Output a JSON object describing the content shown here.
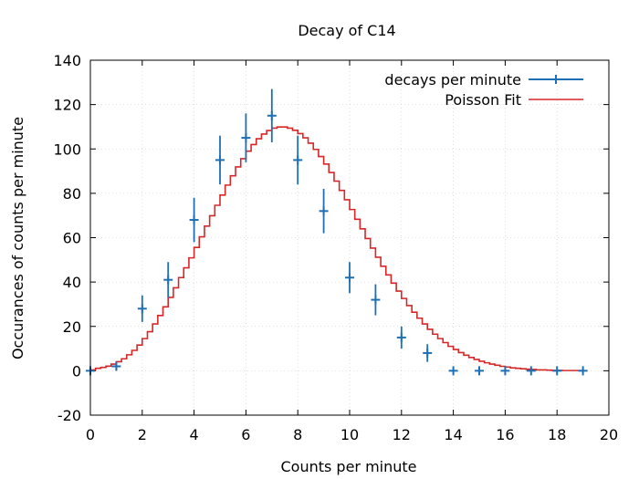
{
  "chart_data": {
    "type": "line",
    "title": "Decay of C14",
    "xlabel": "Counts per minute",
    "ylabel": "Occurances of counts per minute",
    "xlim": [
      0,
      20
    ],
    "ylim": [
      -20,
      140
    ],
    "xticks": [
      0,
      2,
      4,
      6,
      8,
      10,
      12,
      14,
      16,
      18,
      20
    ],
    "yticks": [
      -20,
      0,
      20,
      40,
      60,
      80,
      100,
      120,
      140
    ],
    "grid": true,
    "legend_position": "top-right",
    "series": [
      {
        "name": "decays per minute",
        "kind": "errorbars",
        "color": "#1f6fb4",
        "points": [
          {
            "x": 0,
            "y": 0,
            "err": 0
          },
          {
            "x": 1,
            "y": 2,
            "err": 2
          },
          {
            "x": 2,
            "y": 28,
            "err": 6
          },
          {
            "x": 3,
            "y": 41,
            "err": 8
          },
          {
            "x": 4,
            "y": 68,
            "err": 10
          },
          {
            "x": 5,
            "y": 95,
            "err": 11
          },
          {
            "x": 6,
            "y": 105,
            "err": 11
          },
          {
            "x": 7,
            "y": 115,
            "err": 12
          },
          {
            "x": 8,
            "y": 95,
            "err": 11
          },
          {
            "x": 9,
            "y": 72,
            "err": 10
          },
          {
            "x": 10,
            "y": 42,
            "err": 7
          },
          {
            "x": 11,
            "y": 32,
            "err": 7
          },
          {
            "x": 12,
            "y": 15,
            "err": 5
          },
          {
            "x": 13,
            "y": 8,
            "err": 4
          },
          {
            "x": 14,
            "y": 0,
            "err": 0
          },
          {
            "x": 15,
            "y": 0,
            "err": 0
          },
          {
            "x": 16,
            "y": 0,
            "err": 0
          },
          {
            "x": 17,
            "y": 0,
            "err": 0
          },
          {
            "x": 18,
            "y": 0,
            "err": 0
          },
          {
            "x": 19,
            "y": 0,
            "err": 0
          }
        ]
      },
      {
        "name": "Poisson Fit",
        "kind": "steps",
        "color": "#d62728",
        "x_start": 0,
        "x_end": 19,
        "x_step": 0.2,
        "values": [
          0.4,
          1.1,
          1.5,
          2.1,
          3.0,
          4.1,
          5.4,
          7.2,
          9.2,
          11.6,
          14.5,
          17.6,
          21.1,
          24.9,
          28.8,
          33.1,
          37.4,
          42.0,
          46.4,
          50.9,
          55.6,
          60.4,
          65.2,
          69.9,
          74.6,
          79.2,
          83.7,
          87.9,
          91.9,
          95.6,
          99.0,
          102.0,
          104.6,
          106.7,
          108.3,
          109.4,
          109.9,
          109.9,
          109.4,
          108.4,
          106.9,
          105.0,
          102.6,
          99.8,
          96.6,
          93.2,
          89.4,
          85.5,
          81.3,
          77.1,
          72.7,
          68.3,
          64.0,
          59.6,
          55.3,
          51.2,
          47.1,
          43.2,
          39.5,
          35.9,
          32.6,
          29.4,
          26.4,
          23.7,
          21.1,
          18.7,
          16.5,
          14.5,
          12.7,
          11.0,
          9.6,
          8.2,
          7.0,
          6.0,
          5.1,
          4.3,
          3.6,
          3.0,
          2.5,
          2.0,
          1.7,
          1.3,
          1.1,
          0.9,
          0.7,
          0.6,
          0.4,
          0.4,
          0.3,
          0.2,
          0.2,
          0.1,
          0.1,
          0.1,
          0.1,
          0.0
        ]
      }
    ]
  }
}
